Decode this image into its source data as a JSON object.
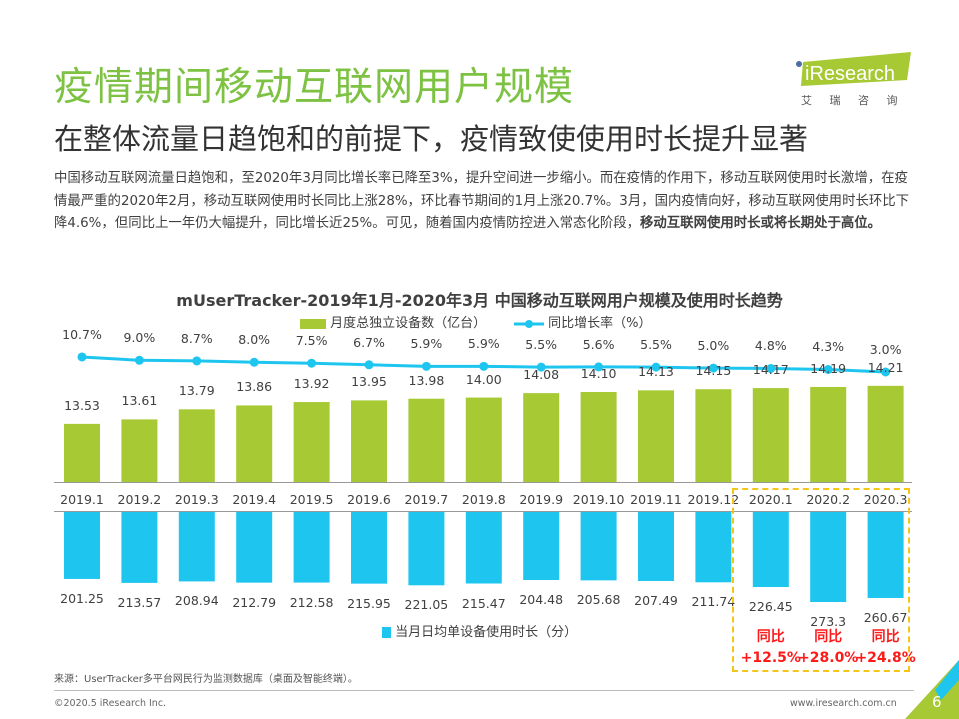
{
  "header": {
    "title": "疫情期间移动互联网用户规模",
    "subtitle": "在整体流量日趋饱和的前提下，疫情致使使用时长提升显著",
    "body_text": "中国移动互联网流量日趋饱和，至2020年3月同比增长率已降至3%，提升空间进一步缩小。而在疫情的作用下，移动互联网使用时长激增，在疫情最严重的2020年2月，移动互联网使用时长同比上涨28%，环比春节期间的1月上涨20.7%。3月，国内疫情向好，移动互联网使用时长环比下降4.6%，但同比上一年仍大幅提升，同比增长近25%。可见，随着国内疫情防控进入常态化阶段，",
    "body_bold": "移动互联网使用时长或将长期处于高位。"
  },
  "logo": {
    "name": "iResearch",
    "cn": "艾 瑞 咨 询"
  },
  "colors": {
    "green": "#a6c934",
    "blue": "#1ec6ef",
    "title_green": "#7dc242",
    "highlight_box": "#f5c518",
    "red": "#ff1a1a"
  },
  "chart_data": {
    "type": "bar+line",
    "title": "mUserTracker-2019年1月-2020年3月 中国移动互联网用户规模及使用时长趋势",
    "categories": [
      "2019.1",
      "2019.2",
      "2019.3",
      "2019.4",
      "2019.5",
      "2019.6",
      "2019.7",
      "2019.8",
      "2019.9",
      "2019.10",
      "2019.11",
      "2019.12",
      "2020.1",
      "2020.2",
      "2020.3"
    ],
    "series": [
      {
        "name": "月度总独立设备数（亿台）",
        "type": "bar",
        "values": [
          "13.53",
          "13.61",
          "13.79",
          "13.86",
          "13.92",
          "13.95",
          "13.98",
          "14.00",
          "14.08",
          "14.10",
          "14.13",
          "14.15",
          "14.17",
          "14.19",
          "14.21"
        ]
      },
      {
        "name": "同比增长率（%）",
        "type": "line",
        "values": [
          "10.7%",
          "9.0%",
          "8.7%",
          "8.0%",
          "7.5%",
          "6.7%",
          "5.9%",
          "5.9%",
          "5.5%",
          "5.6%",
          "5.5%",
          "5.0%",
          "4.8%",
          "4.3%",
          "3.0%"
        ]
      },
      {
        "name": "当月日均单设备使用时长（分）",
        "type": "bar-down",
        "values": [
          "201.25",
          "213.57",
          "208.94",
          "212.79",
          "212.58",
          "215.95",
          "221.05",
          "215.47",
          "204.48",
          "205.68",
          "207.49",
          "211.74",
          "226.45",
          "273.3",
          "260.67"
        ]
      }
    ],
    "annotations": [
      {
        "category": "2020.1",
        "label": "同比",
        "value": "+12.5%"
      },
      {
        "category": "2020.2",
        "label": "同比",
        "value": "+28.0%"
      },
      {
        "category": "2020.3",
        "label": "同比",
        "value": "+24.8%"
      }
    ],
    "legend": "top"
  },
  "footer": {
    "source": "来源：UserTracker多平台网民行为监测数据库（桌面及智能终端）。",
    "copyright": "©2020.5 iResearch Inc.",
    "website": "www.iresearch.com.cn",
    "page": "6"
  }
}
